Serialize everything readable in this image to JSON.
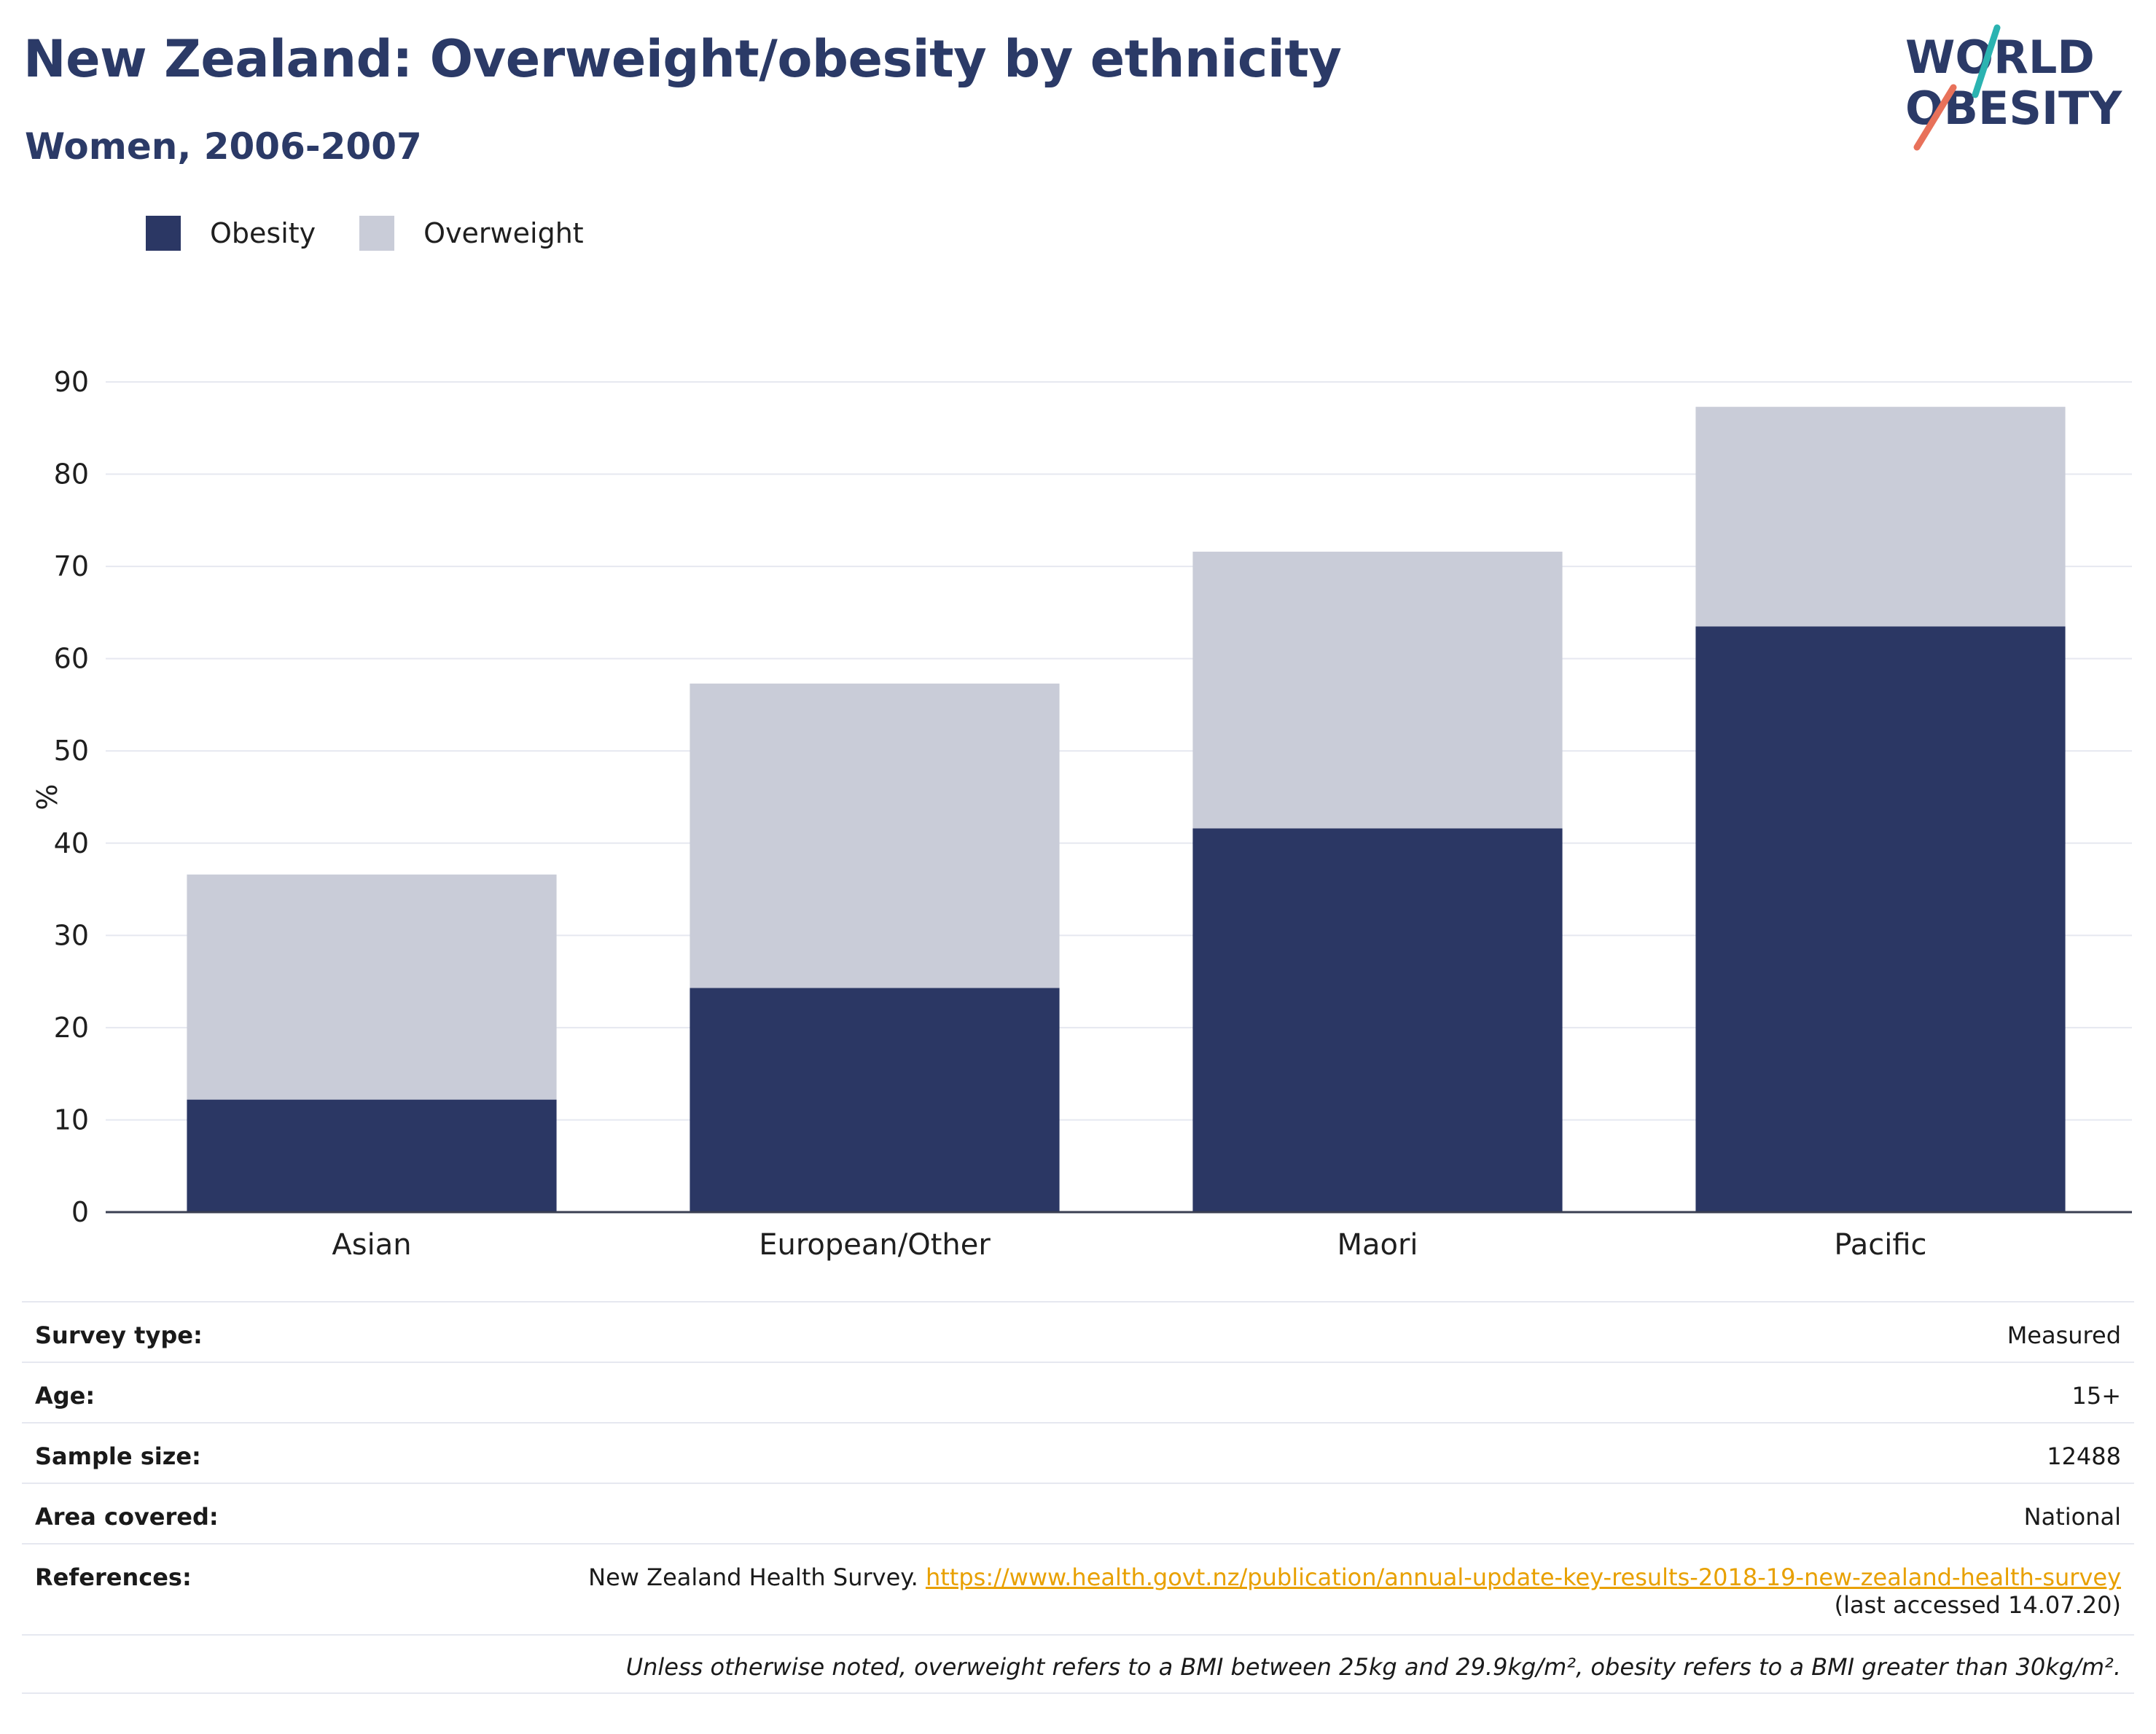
{
  "title": "New Zealand: Overweight/obesity by ethnicity",
  "subtitle": "Women, 2006-2007",
  "logo": {
    "line1": "WORLD",
    "line2": "OBESITY"
  },
  "colors": {
    "obesity": "#2b3764",
    "overweight": "#c9ccd8",
    "title": "#2b3a67",
    "link": "#e8a000",
    "logo_teal": "#2bb3b1",
    "logo_coral": "#e8715a"
  },
  "chart_data": {
    "type": "bar",
    "stacked": true,
    "categories": [
      "Asian",
      "European/Other",
      "Maori",
      "Pacific"
    ],
    "series": [
      {
        "name": "Obesity",
        "values": [
          12.2,
          24.3,
          41.6,
          63.5
        ]
      },
      {
        "name": "Overweight",
        "values": [
          24.4,
          33.0,
          30.0,
          23.8
        ]
      }
    ],
    "ylabel": "%",
    "ylim": [
      0,
      90
    ],
    "yticks": [
      0,
      10,
      20,
      30,
      40,
      50,
      60,
      70,
      80,
      90
    ],
    "grid": true,
    "legend_position": "top-left"
  },
  "info": {
    "survey_type_label": "Survey type:",
    "survey_type_value": "Measured",
    "age_label": "Age:",
    "age_value": "15+",
    "sample_size_label": "Sample size:",
    "sample_size_value": "12488",
    "area_label": "Area covered:",
    "area_value": "National",
    "references_label": "References:",
    "references_text": "New Zealand Health Survey. ",
    "references_link": "https://www.health.govt.nz/publication/annual-update-key-results-2018-19-new-zealand-health-survey",
    "references_accessed": "(last accessed 14.07.20)",
    "note": "Unless otherwise noted, overweight refers to a BMI between 25kg and 29.9kg/m², obesity refers to a BMI greater than 30kg/m²."
  }
}
